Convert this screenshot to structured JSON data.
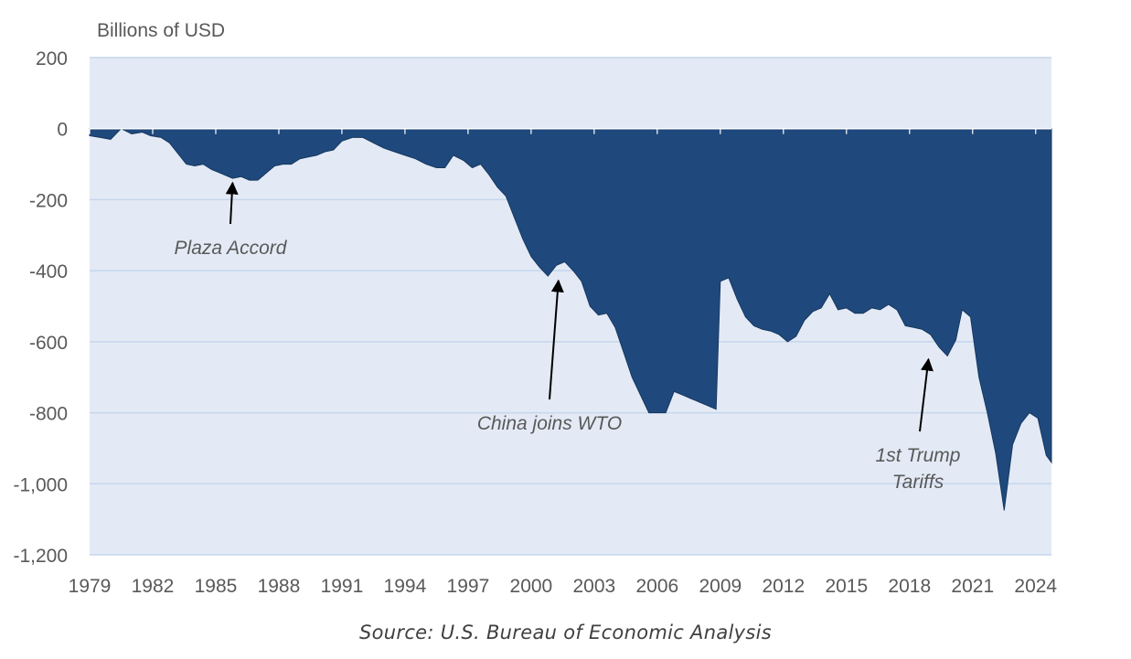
{
  "chart_data": {
    "type": "area",
    "title": "",
    "ylabel": "Billions of USD",
    "xlabel": "",
    "ylim": [
      -1200,
      200
    ],
    "xlim": [
      1979,
      2024.75
    ],
    "yticks": [
      200,
      0,
      -200,
      -400,
      -600,
      -800,
      -1000,
      -1200
    ],
    "ytick_labels": [
      "200",
      "0",
      "-200",
      "-400",
      "-600",
      "-800",
      "-1,000",
      "-1,200"
    ],
    "xticks": [
      1979,
      1982,
      1985,
      1988,
      1991,
      1994,
      1997,
      2000,
      2003,
      2006,
      2009,
      2012,
      2015,
      2018,
      2021,
      2024
    ],
    "xtick_labels": [
      "1979",
      "1982",
      "1985",
      "1988",
      "1991",
      "1994",
      "1997",
      "2000",
      "2003",
      "2006",
      "2009",
      "2012",
      "2015",
      "2018",
      "2021",
      "2024"
    ],
    "grid": true,
    "fill_color": "#1f497d",
    "plot_background": "#e3eaf5",
    "gridline_color": "#c5d6ee",
    "series": [
      {
        "x": [
          1979.0,
          1979.5,
          1980.0,
          1980.5,
          1981.0,
          1981.5,
          1981.9,
          1982.4,
          1982.8,
          1983.2,
          1983.6,
          1984.0,
          1984.4,
          1984.8,
          1985.0,
          1985.4,
          1985.8,
          1986.2,
          1986.6,
          1987.0,
          1987.4,
          1987.8,
          1988.2,
          1988.6,
          1989.0,
          1989.4,
          1989.8,
          1990.2,
          1990.6,
          1991.0,
          1991.5,
          1992.0,
          1992.5,
          1993.0,
          1993.5,
          1994.0,
          1994.5,
          1995.0,
          1995.5,
          1995.9,
          1996.3,
          1996.8,
          1997.2,
          1997.6,
          1998.0,
          1998.4,
          1998.8,
          1999.2,
          1999.6,
          2000.0,
          2000.4,
          2000.8,
          2001.2,
          2001.6,
          2002.0,
          2002.4,
          2002.8,
          2003.2,
          2003.6,
          2004.0,
          2004.4,
          2004.8,
          2005.2,
          2005.6,
          2006.0,
          2006.4,
          2006.8,
          2007.2,
          2007.6,
          2008.0,
          2008.4,
          2008.8,
          2009.0,
          2009.4,
          2009.8,
          2010.2,
          2010.6,
          2011.0,
          2011.4,
          2011.8,
          2012.2,
          2012.6,
          2013.0,
          2013.4,
          2013.8,
          2014.2,
          2014.6,
          2015.0,
          2015.4,
          2015.8,
          2016.2,
          2016.6,
          2017.0,
          2017.4,
          2017.8,
          2018.2,
          2018.6,
          2019.0,
          2019.4,
          2019.8,
          2020.2,
          2020.5,
          2020.9,
          2021.3,
          2021.7,
          2022.1,
          2022.5,
          2022.9,
          2023.3,
          2023.7,
          2024.1,
          2024.5,
          2024.75
        ],
        "y": [
          -20,
          -25,
          -30,
          0,
          -15,
          -10,
          -20,
          -25,
          -40,
          -70,
          -100,
          -105,
          -100,
          -115,
          -120,
          -130,
          -140,
          -135,
          -145,
          -145,
          -125,
          -105,
          -100,
          -100,
          -85,
          -80,
          -75,
          -65,
          -60,
          -35,
          -25,
          -25,
          -40,
          -55,
          -65,
          -75,
          -85,
          -100,
          -110,
          -110,
          -75,
          -90,
          -110,
          -100,
          -130,
          -165,
          -190,
          -250,
          -310,
          -360,
          -390,
          -415,
          -385,
          -375,
          -400,
          -430,
          -500,
          -525,
          -520,
          -560,
          -630,
          -700,
          -750,
          -800,
          -800,
          -800,
          -740,
          -750,
          -760,
          -770,
          -780,
          -790,
          -430,
          -420,
          -480,
          -530,
          -555,
          -565,
          -570,
          -580,
          -600,
          -585,
          -540,
          -515,
          -505,
          -465,
          -510,
          -505,
          -520,
          -520,
          -505,
          -510,
          -495,
          -510,
          -555,
          -560,
          -565,
          -580,
          -615,
          -640,
          -595,
          -510,
          -530,
          -700,
          -800,
          -915,
          -1075,
          -890,
          -830,
          -800,
          -815,
          -920,
          -940
        ]
      }
    ],
    "annotations": [
      {
        "text": "Plaza Accord",
        "x": 1985.8,
        "y": -145
      },
      {
        "text": "China joins WTO",
        "x": 2001.3,
        "y": -420
      },
      {
        "text": "1st Trump Tariffs",
        "x": 2018.9,
        "y": -645
      }
    ],
    "source": "Source: U.S. Bureau of Economic Analysis"
  }
}
